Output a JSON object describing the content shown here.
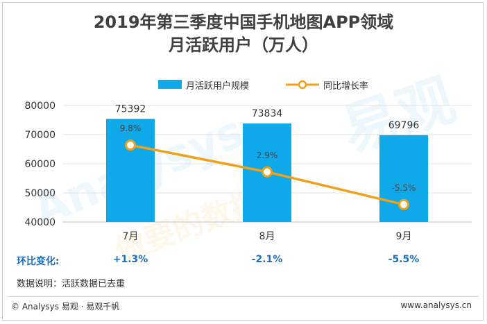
{
  "title_line1": "2019年第三季度中国手机地图APP领域",
  "title_line2": "月活跃用户（万人）",
  "legend": {
    "bar_label": "月活跃用户规模",
    "line_label": "同比增长率"
  },
  "colors": {
    "bar": "#0fa8e8",
    "line": "#f0a11a",
    "mom_text": "#1f6fb8"
  },
  "mom": {
    "label": "环比变化:",
    "values": [
      "+1.3%",
      "-2.1%",
      "-5.5%"
    ]
  },
  "note": "数据说明：活跃数据已去重",
  "footer": {
    "left": "© Analysys 易观 · 易观千帆",
    "right": "www.analysys.cn"
  },
  "watermark": {
    "cn": "易观",
    "en": "Analysys",
    "slogan": "做要的数据"
  },
  "chart_data": {
    "type": "bar",
    "categories": [
      "7月",
      "8月",
      "9月"
    ],
    "series": [
      {
        "name": "月活跃用户规模",
        "type": "bar",
        "values": [
          75392,
          73834,
          69796
        ]
      },
      {
        "name": "同比增长率",
        "type": "line",
        "values": [
          9.8,
          2.9,
          -5.5
        ],
        "labels": [
          "9.8%",
          "2.9%",
          "-5.5%"
        ]
      }
    ],
    "ylim": [
      40000,
      80000
    ],
    "yticks": [
      40000,
      50000,
      60000,
      70000,
      80000
    ],
    "grid": true
  }
}
